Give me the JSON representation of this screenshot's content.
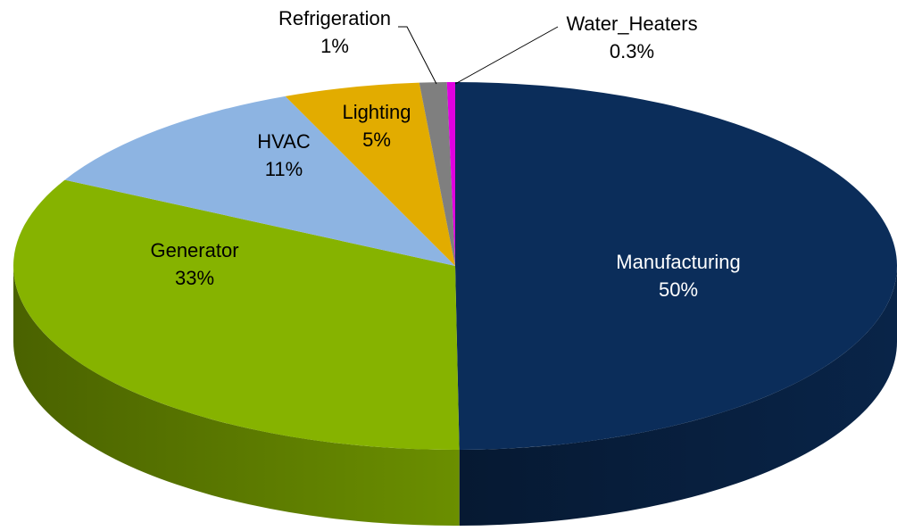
{
  "chart_data": {
    "type": "pie",
    "categories": [
      "Manufacturing",
      "Generator",
      "HVAC",
      "Lighting",
      "Refrigeration",
      "Water_Heaters"
    ],
    "values": [
      50,
      33,
      11,
      5,
      1,
      0.3
    ],
    "value_labels": [
      "50%",
      "33%",
      "11%",
      "5%",
      "1%",
      "0.3%"
    ],
    "colors": [
      "#0b2d5a",
      "#86b300",
      "#8db4e2",
      "#e2ac00",
      "#7f7f7f",
      "#e000e0"
    ]
  }
}
